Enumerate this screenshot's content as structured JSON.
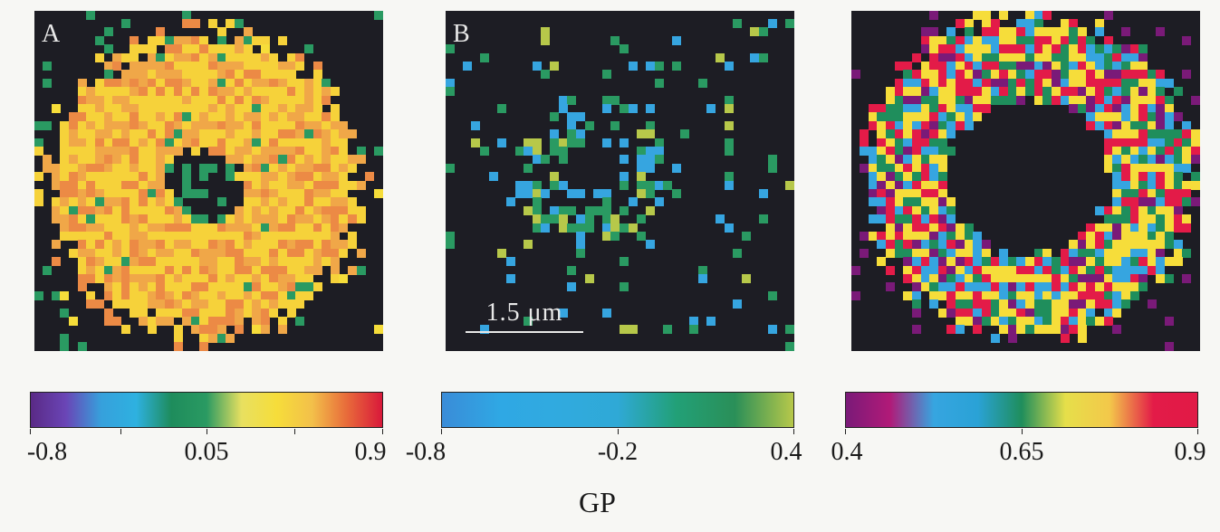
{
  "panels": [
    {
      "id": "A",
      "letter": "A"
    },
    {
      "id": "B",
      "letter": "B",
      "scalebar": "1.5 μm"
    },
    {
      "id": "C",
      "letter": ""
    }
  ],
  "colorbars": [
    {
      "ticks": [
        "-0.8",
        "0.05",
        "0.9"
      ],
      "range": [
        -0.8,
        0.9
      ],
      "colors": [
        "#5a2a86",
        "#6a45b6",
        "#36a0dc",
        "#2eb1e0",
        "#1e8c5c",
        "#2a9a62",
        "#e8e060",
        "#f6dd3a",
        "#f3c04a",
        "#e86a3a",
        "#d9193a"
      ]
    },
    {
      "ticks": [
        "-0.8",
        "-0.2",
        "0.4"
      ],
      "range": [
        -0.8,
        0.4
      ],
      "colors": [
        "#3a8cd8",
        "#2fa8e4",
        "#30aadf",
        "#2fa9d6",
        "#22a077",
        "#2a8f58",
        "#b7c84a"
      ]
    },
    {
      "ticks": [
        "0.4",
        "0.65",
        "0.9"
      ],
      "range": [
        0.4,
        0.9
      ],
      "colors": [
        "#7a1a78",
        "#b11a78",
        "#36a5e0",
        "#2aa2d6",
        "#1f8e5c",
        "#e6df4a",
        "#f3c84a",
        "#e31b48",
        "#e11a46"
      ]
    }
  ],
  "axis_label": "GP"
}
